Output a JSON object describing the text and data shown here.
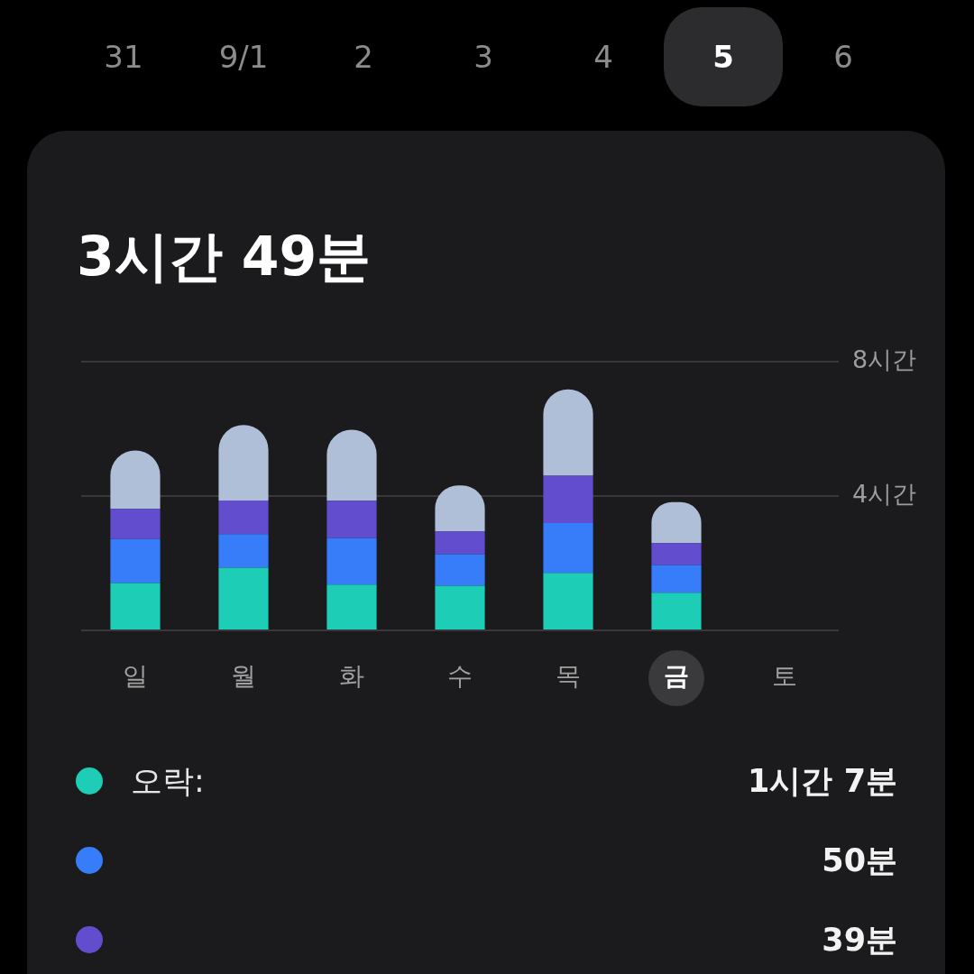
{
  "chart_data": {
    "type": "bar",
    "title": "3시간 49분",
    "categories": [
      "일",
      "월",
      "화",
      "수",
      "목",
      "금",
      "토"
    ],
    "stacked": true,
    "series": [
      {
        "name": "오락:",
        "color": "#1ecdb5",
        "values": [
          1.41,
          1.87,
          1.36,
          1.33,
          1.71,
          1.12,
          null
        ]
      },
      {
        "color": "#377cf8",
        "values": [
          1.31,
          1.0,
          1.39,
          0.94,
          1.49,
          0.83,
          null
        ]
      },
      {
        "color": "#634dcf",
        "values": [
          0.9,
          1.0,
          1.11,
          0.68,
          1.41,
          0.65,
          null
        ]
      },
      {
        "color": "#b0bfd8",
        "values": [
          1.74,
          2.25,
          2.12,
          1.37,
          2.57,
          1.22,
          null
        ]
      }
    ],
    "ylim": [
      0,
      8
    ],
    "yticks": [
      {
        "value": 0,
        "label": null
      },
      {
        "value": 4,
        "label": "4시간"
      },
      {
        "value": 8,
        "label": "8시간"
      }
    ],
    "grid": "y",
    "legend": "bottom",
    "annotations": [
      "31",
      "9/1",
      "2",
      "3",
      "4",
      "5",
      "6",
      "1시간 7분",
      "50분",
      "39분"
    ]
  }
}
